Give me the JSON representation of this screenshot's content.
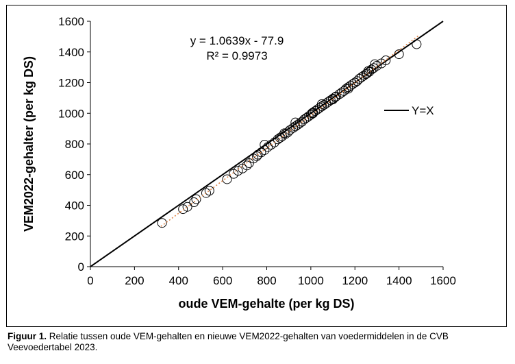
{
  "caption": {
    "label": "Figuur 1.",
    "text": " Relatie tussen oude VEM-gehalten en nieuwe VEM2022-gehalten van voedermiddelen in de CVB Veevoedertabel 2023."
  },
  "chart_data": {
    "type": "scatter",
    "xlabel": "oude VEM-gehalte (per kg DS)",
    "ylabel": "VEM2022-gehalter (per kg DS)",
    "xlim": [
      0,
      1600
    ],
    "ylim": [
      0,
      1600
    ],
    "xticks": [
      0,
      200,
      400,
      600,
      800,
      1000,
      1200,
      1400,
      1600
    ],
    "yticks": [
      0,
      200,
      400,
      600,
      800,
      1000,
      1200,
      1400,
      1600
    ],
    "grid": false,
    "trendline": {
      "equation": "y = 1.0639x - 77.9",
      "r2_label": "R² = 0.9973",
      "slope": 1.0639,
      "intercept": -77.9,
      "style": "dotted",
      "color": "#e0874a",
      "x_range": [
        320,
        1490
      ]
    },
    "reference_line": {
      "name": "Y=X",
      "color": "#000000",
      "x_range": [
        0,
        1600
      ]
    },
    "legend": {
      "position": "right",
      "entries": [
        "Y=X"
      ]
    },
    "marker_color": "#000000",
    "series": [
      {
        "x": [
          325,
          420,
          440,
          470,
          480,
          525,
          540,
          620,
          650,
          670,
          690,
          710,
          720,
          740,
          755,
          760,
          775,
          790,
          805,
          820,
          835,
          850,
          860,
          870,
          885,
          895,
          905,
          920,
          930,
          940,
          950,
          960,
          970,
          980,
          990,
          1000,
          1005,
          1010,
          1020,
          1030,
          1040,
          1050,
          1060,
          1070,
          1080,
          1090,
          1100,
          1110,
          1115,
          1130,
          1140,
          1150,
          1160,
          1170,
          1180,
          1190,
          1200,
          1210,
          1220,
          1230,
          1240,
          1250,
          1255,
          1265,
          1275,
          1285,
          1300,
          1320,
          1340,
          1400,
          1480,
          930,
          1010,
          1100,
          1170,
          1260,
          1290,
          790,
          880,
          1050
        ],
        "y": [
          285,
          375,
          390,
          420,
          440,
          480,
          495,
          570,
          605,
          625,
          640,
          660,
          675,
          705,
          720,
          730,
          745,
          760,
          780,
          795,
          810,
          830,
          840,
          850,
          865,
          875,
          890,
          905,
          915,
          925,
          935,
          945,
          960,
          970,
          980,
          990,
          1000,
          1005,
          1015,
          1025,
          1035,
          1045,
          1055,
          1065,
          1075,
          1085,
          1095,
          1105,
          1110,
          1125,
          1135,
          1145,
          1160,
          1170,
          1180,
          1190,
          1200,
          1210,
          1225,
          1235,
          1245,
          1255,
          1260,
          1270,
          1285,
          1295,
          1310,
          1325,
          1345,
          1385,
          1450,
          940,
          1000,
          1090,
          1160,
          1275,
          1320,
          795,
          870,
          1060
        ]
      }
    ]
  }
}
